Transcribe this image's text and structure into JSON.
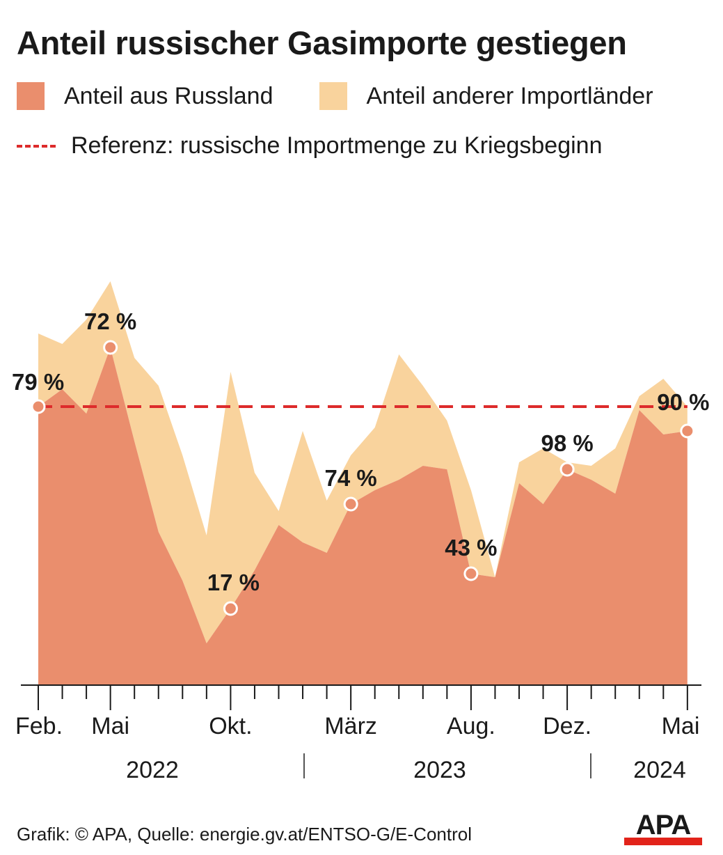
{
  "title": "Anteil russischer Gasimporte gestiegen",
  "legend": {
    "russia": "Anteil aus Russland",
    "others": "Anteil anderer Importländer",
    "reference": "Referenz: russische Importmenge zu Kriegsbeginn"
  },
  "colors": {
    "russia": "#ea8e6d",
    "others": "#f9d39d",
    "reference": "#dd2b2b",
    "text": "#1a1a1a"
  },
  "chart_data": {
    "type": "area",
    "x": [
      "2022-02",
      "2022-03",
      "2022-04",
      "2022-05",
      "2022-06",
      "2022-07",
      "2022-08",
      "2022-09",
      "2022-10",
      "2022-11",
      "2022-12",
      "2023-01",
      "2023-02",
      "2023-03",
      "2023-04",
      "2023-05",
      "2023-06",
      "2023-07",
      "2023-08",
      "2023-09",
      "2023-10",
      "2023-11",
      "2023-12",
      "2024-01",
      "2024-02",
      "2024-03",
      "2024-04",
      "2024-05"
    ],
    "series": [
      {
        "name": "Anteil aus Russland",
        "stacked": true,
        "values": [
          80,
          85,
          78,
          97,
          70,
          44,
          30,
          12,
          22,
          33,
          46,
          41,
          38,
          52,
          56,
          59,
          63,
          62,
          32,
          31,
          58,
          52,
          62,
          59,
          55,
          79,
          72,
          73
        ]
      },
      {
        "name": "Anteil anderer Importländer",
        "stacked": true,
        "values": [
          21,
          13,
          27,
          19,
          24,
          42,
          36,
          31,
          68,
          28,
          4,
          32,
          15,
          14,
          18,
          36,
          23,
          14,
          24,
          0,
          6,
          16,
          2,
          4,
          13,
          4,
          16,
          7
        ]
      }
    ],
    "annotations": [
      {
        "x": "2022-02",
        "label": "79 %"
      },
      {
        "x": "2022-05",
        "label": "72 %"
      },
      {
        "x": "2022-10",
        "label": "17 %"
      },
      {
        "x": "2023-03",
        "label": "74 %"
      },
      {
        "x": "2023-08",
        "label": "43 %"
      },
      {
        "x": "2023-12",
        "label": "98 %"
      },
      {
        "x": "2024-05",
        "label": "90 %"
      }
    ],
    "reference_line": {
      "value": 80,
      "label": "Referenz: russische Importmenge zu Kriegsbeginn"
    },
    "ylim": [
      0,
      140
    ],
    "tick_labels": [
      {
        "x": "2022-02",
        "label": "Feb."
      },
      {
        "x": "2022-05",
        "label": "Mai"
      },
      {
        "x": "2022-10",
        "label": "Okt."
      },
      {
        "x": "2023-03",
        "label": "März"
      },
      {
        "x": "2023-08",
        "label": "Aug."
      },
      {
        "x": "2023-12",
        "label": "Dez."
      },
      {
        "x": "2024-05",
        "label": "Mai"
      }
    ],
    "years": [
      "2022",
      "2023",
      "2024"
    ],
    "y_axis_shown": false,
    "grid": false
  },
  "footer": "Grafik: © APA, Quelle: energie.gv.at/ENTSO-G/E-Control",
  "logo": {
    "text": "APA",
    "icon": "apa-logo-icon"
  }
}
